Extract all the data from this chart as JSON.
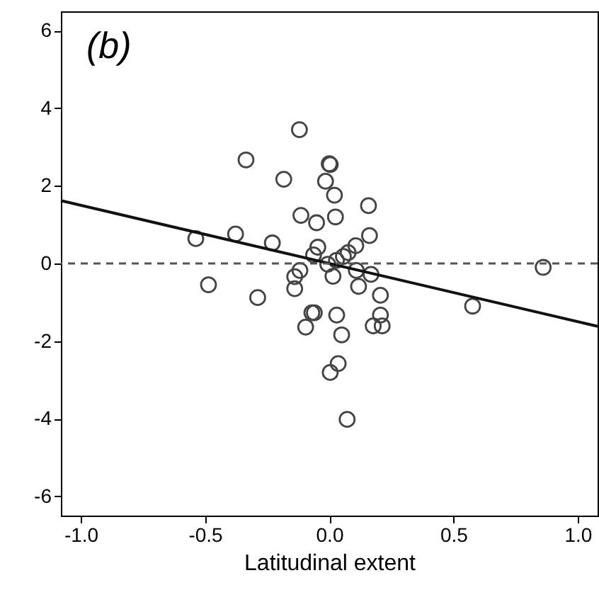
{
  "chart_data": {
    "type": "scatter",
    "xlabel": "Latitudinal extent",
    "annotations": [
      "(b)"
    ],
    "xlim": [
      -1.08,
      1.08
    ],
    "ylim": [
      -6.5,
      6.5
    ],
    "xticks": [
      {
        "value": -1,
        "label": "-1.0"
      },
      {
        "value": -0.5,
        "label": "-0.5"
      },
      {
        "value": 0,
        "label": "0.0"
      },
      {
        "value": 0.5,
        "label": "0.5"
      },
      {
        "value": 1,
        "label": "1.0"
      }
    ],
    "yticks": [
      -6,
      -4,
      -2,
      0,
      2,
      4,
      6
    ],
    "marker": "circle",
    "ref_lines": [
      {
        "axis": "y",
        "value": 0,
        "color": "#555555",
        "line_style": "dashed"
      }
    ],
    "series": [
      {
        "color": "#444444",
        "x": [
          -0.537,
          -0.486,
          -0.377,
          -0.335,
          -0.288,
          -0.229,
          -0.183,
          -0.12,
          -0.114,
          -0.139,
          -0.139,
          -0.118,
          -0.095,
          -0.07,
          -0.06,
          -0.051,
          -0.046,
          -0.063,
          0.0,
          0.004,
          -0.015,
          0.021,
          0.025,
          -0.006,
          0.015,
          0.029,
          0.03,
          0.05,
          0.036,
          0.004,
          0.072,
          0.057,
          0.076,
          0.107,
          0.118,
          0.109,
          0.158,
          0.162,
          0.168,
          0.206,
          0.206,
          0.177,
          0.213,
          0.577,
          0.861
        ],
        "values": [
          0.64,
          -0.55,
          0.76,
          2.67,
          -0.88,
          0.53,
          2.17,
          3.45,
          1.24,
          -0.34,
          -0.65,
          -0.18,
          -1.64,
          -1.27,
          -1.27,
          1.05,
          0.42,
          0.22,
          2.57,
          2.55,
          2.12,
          1.76,
          1.2,
          -0.02,
          -0.33,
          0.08,
          -1.33,
          -1.84,
          -2.58,
          -2.81,
          -4.02,
          0.18,
          0.28,
          0.46,
          -0.59,
          -0.18,
          1.49,
          0.72,
          -0.28,
          -0.82,
          -1.33,
          -1.61,
          -1.61,
          -1.1,
          -0.1
        ]
      },
      {
        "type": "line",
        "marker": "none",
        "color": "#111111",
        "line_style": "solid",
        "x": [
          -1.08,
          1.08
        ],
        "values": [
          1.62,
          -1.62
        ]
      }
    ]
  }
}
